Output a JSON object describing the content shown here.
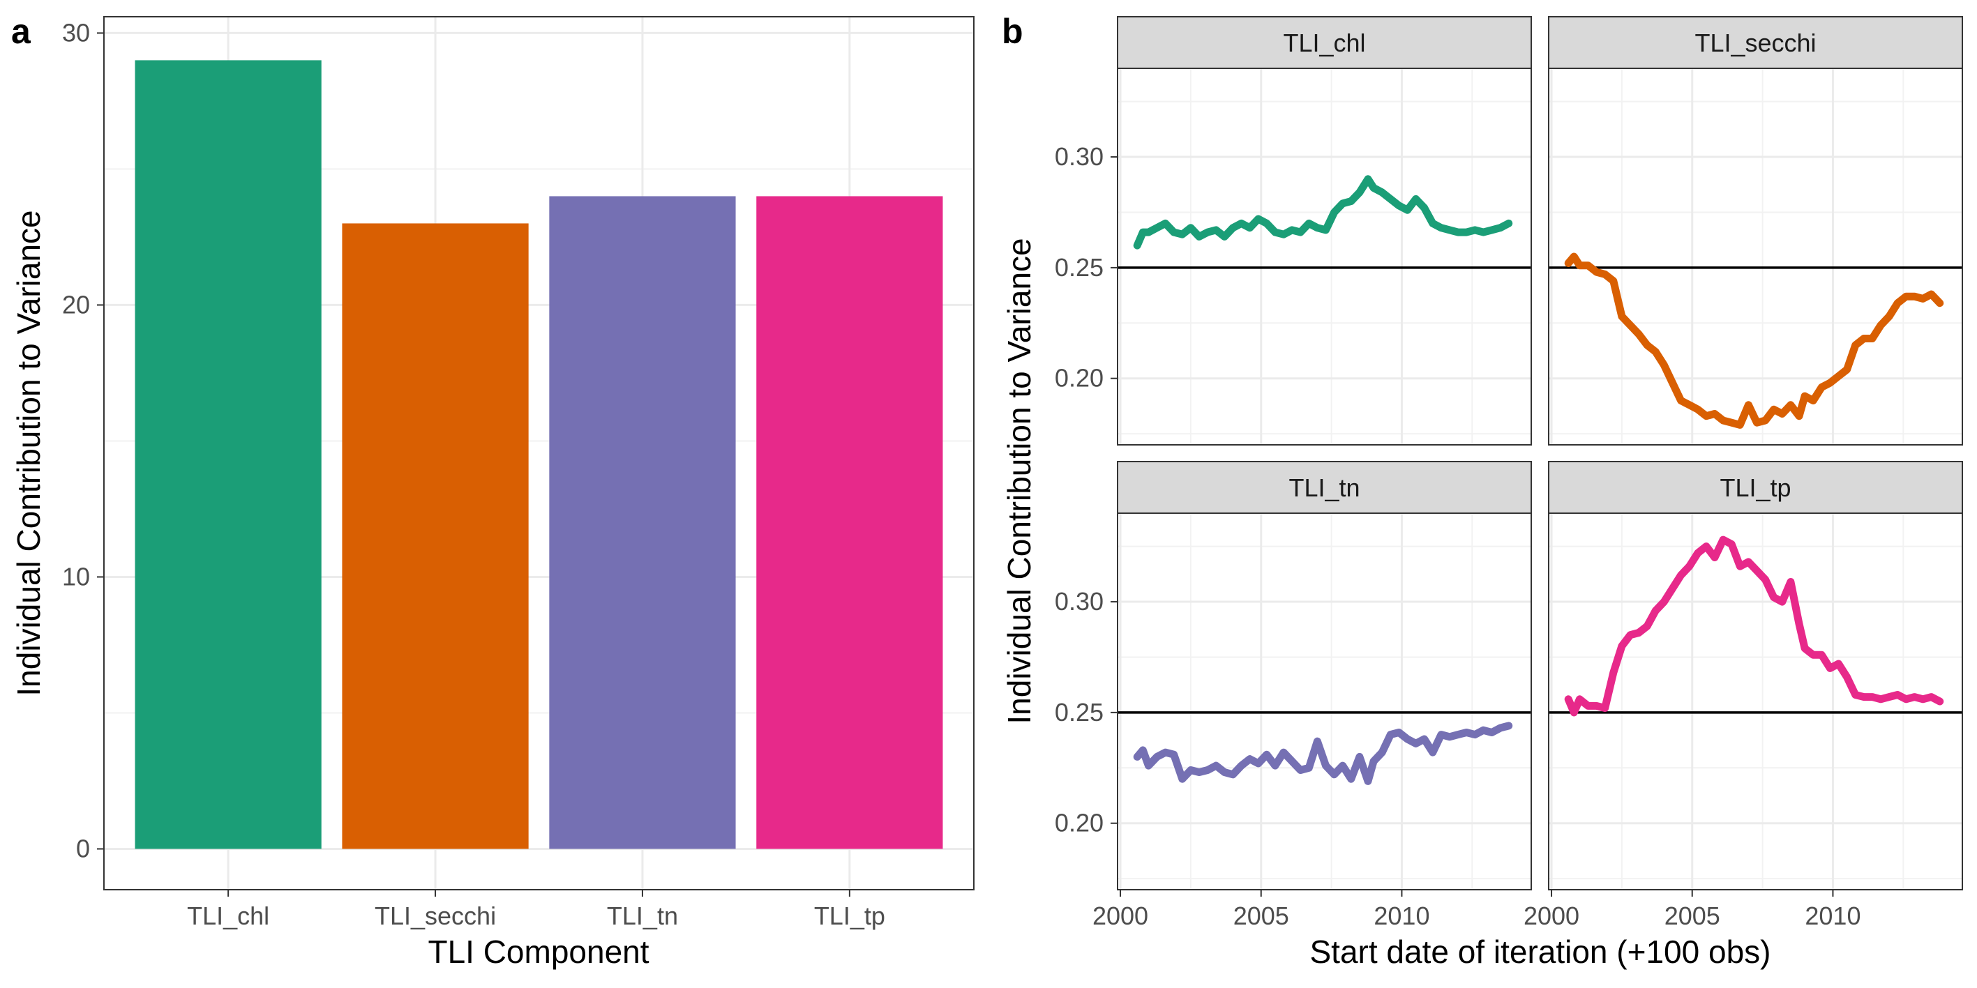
{
  "chart_data": [
    {
      "type": "bar",
      "panel_label": "a",
      "xlabel": "TLI Component",
      "ylabel": "Individual Contribution to Variance",
      "ylim": [
        -1.5,
        30.6
      ],
      "yticks": [
        0,
        10,
        20,
        30
      ],
      "categories": [
        "TLI_chl",
        "TLI_secchi",
        "TLI_tn",
        "TLI_tp"
      ],
      "values": [
        29,
        23,
        24,
        24
      ],
      "colors": [
        "#1b9e77",
        "#d95f02",
        "#7570b3",
        "#e7298a"
      ],
      "grid": true
    },
    {
      "type": "line",
      "panel_label": "b",
      "xlabel": "Start date of iteration (+100 obs)",
      "ylabel": "Individual Contribution to Variance",
      "xlim": [
        1999.9,
        2014.6
      ],
      "ylim": [
        0.17,
        0.34
      ],
      "xticks": [
        2000,
        2005,
        2010
      ],
      "yticks": [
        0.2,
        0.25,
        0.3
      ],
      "reference_line": 0.25,
      "grid": true,
      "facets": [
        {
          "name": "TLI_chl",
          "color": "#1b9e77",
          "x": [
            2000.6,
            2000.8,
            2001.0,
            2001.3,
            2001.6,
            2001.9,
            2002.2,
            2002.5,
            2002.8,
            2003.1,
            2003.4,
            2003.7,
            2004.0,
            2004.3,
            2004.6,
            2004.9,
            2005.2,
            2005.5,
            2005.8,
            2006.1,
            2006.4,
            2006.7,
            2007.0,
            2007.3,
            2007.6,
            2007.9,
            2008.2,
            2008.5,
            2008.8,
            2009.0,
            2009.3,
            2009.6,
            2009.9,
            2010.2,
            2010.5,
            2010.8,
            2011.1,
            2011.4,
            2011.7,
            2012.0,
            2012.3,
            2012.6,
            2012.9,
            2013.2,
            2013.5,
            2013.8
          ],
          "y": [
            0.26,
            0.266,
            0.266,
            0.268,
            0.27,
            0.266,
            0.265,
            0.268,
            0.264,
            0.266,
            0.267,
            0.264,
            0.268,
            0.27,
            0.268,
            0.272,
            0.27,
            0.266,
            0.265,
            0.267,
            0.266,
            0.27,
            0.268,
            0.267,
            0.275,
            0.279,
            0.28,
            0.284,
            0.29,
            0.286,
            0.284,
            0.281,
            0.278,
            0.276,
            0.281,
            0.277,
            0.27,
            0.268,
            0.267,
            0.266,
            0.266,
            0.267,
            0.266,
            0.267,
            0.268,
            0.27
          ]
        },
        {
          "name": "TLI_secchi",
          "color": "#d95f02",
          "x": [
            2000.6,
            2000.8,
            2001.0,
            2001.3,
            2001.6,
            2001.9,
            2002.2,
            2002.5,
            2002.8,
            2003.1,
            2003.4,
            2003.7,
            2004.0,
            2004.3,
            2004.6,
            2004.9,
            2005.2,
            2005.5,
            2005.8,
            2006.1,
            2006.4,
            2006.7,
            2007.0,
            2007.3,
            2007.6,
            2007.9,
            2008.2,
            2008.5,
            2008.8,
            2009.0,
            2009.3,
            2009.6,
            2009.9,
            2010.2,
            2010.5,
            2010.8,
            2011.1,
            2011.4,
            2011.7,
            2012.0,
            2012.3,
            2012.6,
            2012.9,
            2013.2,
            2013.5,
            2013.8
          ],
          "y": [
            0.252,
            0.255,
            0.251,
            0.251,
            0.248,
            0.247,
            0.244,
            0.228,
            0.224,
            0.22,
            0.215,
            0.212,
            0.206,
            0.198,
            0.19,
            0.188,
            0.186,
            0.183,
            0.184,
            0.181,
            0.18,
            0.179,
            0.188,
            0.18,
            0.181,
            0.186,
            0.184,
            0.188,
            0.183,
            0.192,
            0.19,
            0.196,
            0.198,
            0.201,
            0.204,
            0.215,
            0.218,
            0.218,
            0.224,
            0.228,
            0.234,
            0.237,
            0.237,
            0.236,
            0.238,
            0.234
          ]
        },
        {
          "name": "TLI_tn",
          "color": "#7570b3",
          "x": [
            2000.6,
            2000.8,
            2001.0,
            2001.3,
            2001.6,
            2001.9,
            2002.2,
            2002.5,
            2002.8,
            2003.1,
            2003.4,
            2003.7,
            2004.0,
            2004.3,
            2004.6,
            2004.9,
            2005.2,
            2005.5,
            2005.8,
            2006.1,
            2006.4,
            2006.7,
            2007.0,
            2007.3,
            2007.6,
            2007.9,
            2008.2,
            2008.5,
            2008.8,
            2009.0,
            2009.3,
            2009.6,
            2009.9,
            2010.2,
            2010.5,
            2010.8,
            2011.1,
            2011.4,
            2011.7,
            2012.0,
            2012.3,
            2012.6,
            2012.9,
            2013.2,
            2013.5,
            2013.8
          ],
          "y": [
            0.23,
            0.233,
            0.226,
            0.23,
            0.232,
            0.231,
            0.22,
            0.224,
            0.223,
            0.224,
            0.226,
            0.223,
            0.222,
            0.226,
            0.229,
            0.227,
            0.231,
            0.226,
            0.232,
            0.228,
            0.224,
            0.225,
            0.237,
            0.226,
            0.222,
            0.226,
            0.22,
            0.23,
            0.219,
            0.228,
            0.232,
            0.24,
            0.241,
            0.238,
            0.236,
            0.238,
            0.232,
            0.24,
            0.239,
            0.24,
            0.241,
            0.24,
            0.242,
            0.241,
            0.243,
            0.244
          ]
        },
        {
          "name": "TLI_tp",
          "color": "#e7298a",
          "x": [
            2000.6,
            2000.8,
            2001.0,
            2001.3,
            2001.6,
            2001.9,
            2002.2,
            2002.5,
            2002.8,
            2003.1,
            2003.4,
            2003.7,
            2004.0,
            2004.3,
            2004.6,
            2004.9,
            2005.2,
            2005.5,
            2005.8,
            2006.1,
            2006.4,
            2006.7,
            2007.0,
            2007.3,
            2007.6,
            2007.9,
            2008.2,
            2008.5,
            2008.8,
            2009.0,
            2009.3,
            2009.6,
            2009.9,
            2010.2,
            2010.5,
            2010.8,
            2011.1,
            2011.4,
            2011.7,
            2012.0,
            2012.3,
            2012.6,
            2012.9,
            2013.2,
            2013.5,
            2013.8
          ],
          "y": [
            0.256,
            0.25,
            0.256,
            0.253,
            0.253,
            0.252,
            0.268,
            0.28,
            0.285,
            0.286,
            0.289,
            0.296,
            0.3,
            0.306,
            0.312,
            0.316,
            0.322,
            0.325,
            0.32,
            0.328,
            0.326,
            0.316,
            0.318,
            0.314,
            0.31,
            0.302,
            0.3,
            0.309,
            0.29,
            0.279,
            0.276,
            0.276,
            0.27,
            0.272,
            0.266,
            0.258,
            0.257,
            0.257,
            0.256,
            0.257,
            0.258,
            0.256,
            0.257,
            0.256,
            0.257,
            0.255
          ]
        }
      ]
    }
  ]
}
